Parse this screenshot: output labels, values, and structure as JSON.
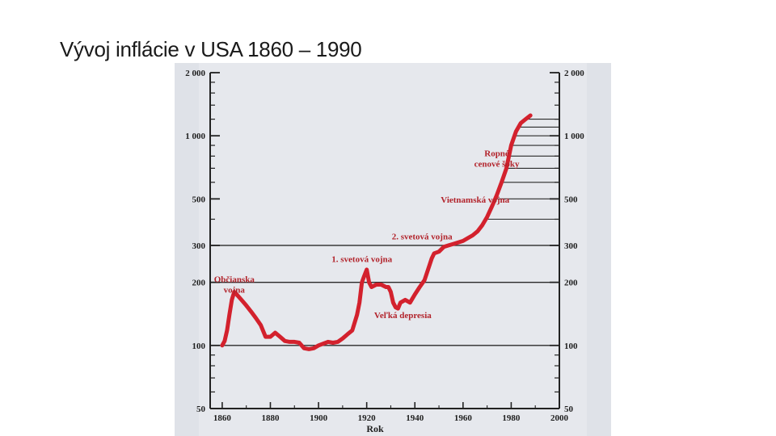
{
  "slide": {
    "title": "Vývoj inflácie v USA 1860 – 1990"
  },
  "chart_data": {
    "type": "line",
    "title": "",
    "xlabel": "Rok",
    "ylabel": "",
    "y_scale": "log",
    "xlim": [
      1855,
      2000
    ],
    "ylim": [
      50,
      2000
    ],
    "x_ticks": [
      "1860",
      "1880",
      "1900",
      "1920",
      "1940",
      "1960",
      "1980",
      "2000"
    ],
    "y_ticks_left": [
      "2 000",
      "1 000",
      "500",
      "300",
      "200",
      "100",
      "50"
    ],
    "y_ticks_right": [
      "2 000",
      "1 000",
      "500",
      "300",
      "200",
      "100",
      "50"
    ],
    "line_color": "#d3212d",
    "series": [
      {
        "x": [
          1860,
          1861,
          1862,
          1863,
          1864,
          1865,
          1866,
          1868,
          1870,
          1872,
          1874,
          1876,
          1878,
          1880,
          1882,
          1884,
          1886,
          1888,
          1890,
          1892,
          1894,
          1896,
          1898,
          1900,
          1902,
          1904,
          1906,
          1908,
          1910,
          1912,
          1914,
          1916,
          1917,
          1918,
          1919,
          1920,
          1921,
          1922,
          1924,
          1926,
          1928,
          1929,
          1930,
          1931,
          1932,
          1933,
          1934,
          1936,
          1938,
          1940,
          1942,
          1944,
          1946,
          1947,
          1948,
          1950,
          1952,
          1954,
          1956,
          1958,
          1960,
          1962,
          1964,
          1966,
          1968,
          1970,
          1972,
          1974,
          1976,
          1978,
          1980,
          1982,
          1984,
          1986,
          1988
        ],
        "values": [
          100,
          105,
          118,
          140,
          165,
          180,
          175,
          165,
          155,
          145,
          135,
          125,
          110,
          110,
          115,
          110,
          105,
          104,
          104,
          103,
          97,
          96,
          97,
          100,
          102,
          104,
          103,
          104,
          108,
          113,
          118,
          140,
          160,
          200,
          215,
          230,
          200,
          190,
          195,
          195,
          190,
          190,
          180,
          160,
          152,
          150,
          160,
          165,
          160,
          175,
          190,
          205,
          240,
          260,
          275,
          280,
          295,
          300,
          305,
          310,
          315,
          325,
          335,
          350,
          375,
          410,
          460,
          520,
          600,
          700,
          900,
          1050,
          1150,
          1200,
          1250
        ]
      }
    ],
    "annotations": [
      {
        "lines": [
          "Občianska",
          "vojna"
        ],
        "x": 1865,
        "y": 200
      },
      {
        "lines": [
          "1. svetová vojna"
        ],
        "x": 1918,
        "y": 250
      },
      {
        "lines": [
          "2. svetová vojna"
        ],
        "x": 1943,
        "y": 320
      },
      {
        "lines": [
          "Veľká depresia"
        ],
        "x": 1935,
        "y": 135
      },
      {
        "lines": [
          "Vietnamská vojna"
        ],
        "x": 1965,
        "y": 480
      },
      {
        "lines": [
          "Ropné",
          "cenové šoky"
        ],
        "x": 1974,
        "y": 800
      }
    ]
  }
}
